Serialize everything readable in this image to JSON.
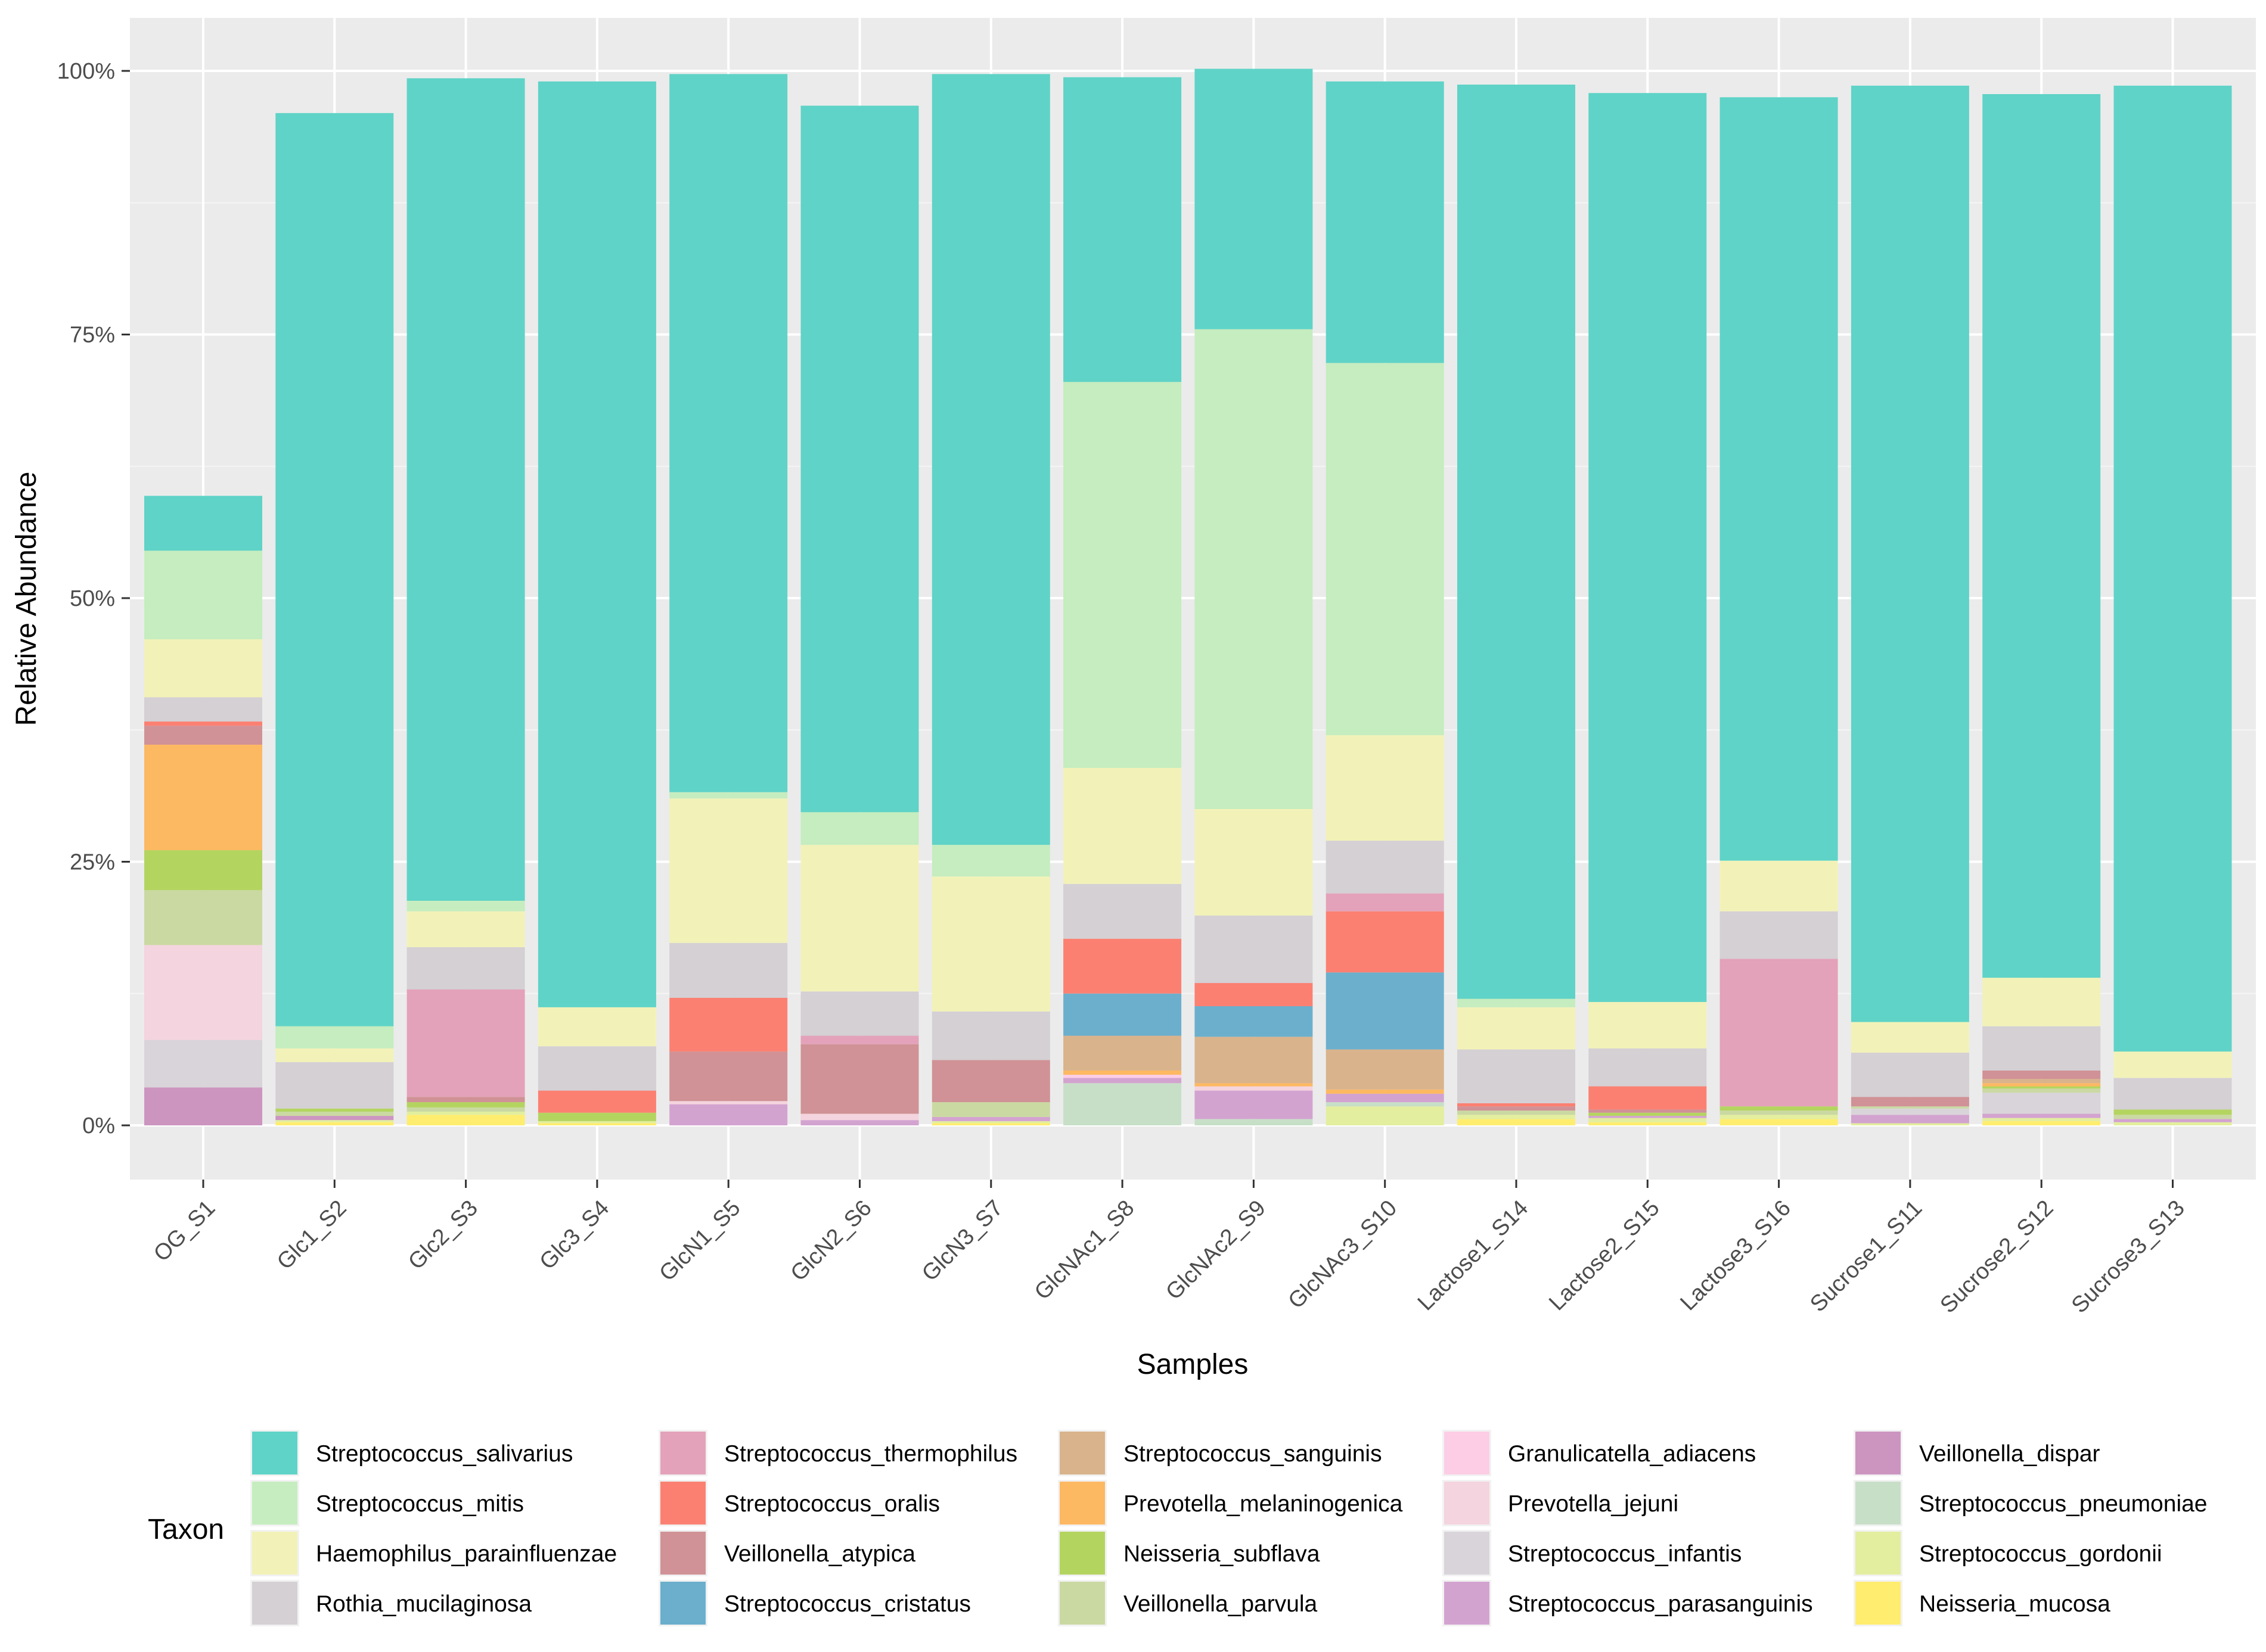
{
  "chart_data": {
    "type": "bar",
    "stacked": true,
    "title": "",
    "xlabel": "Samples",
    "ylabel": "Relative Abundance",
    "ylim": [
      0,
      1
    ],
    "yticks": [
      0,
      0.25,
      0.5,
      0.75,
      1.0
    ],
    "ytick_labels": [
      "0%",
      "25%",
      "50%",
      "75%",
      "100%"
    ],
    "legend_title": "Taxon",
    "legend_position": "bottom",
    "categories": [
      "OG_S1",
      "Glc1_S2",
      "Glc2_S3",
      "Glc3_S4",
      "GlcN1_S5",
      "GlcN2_S6",
      "GlcN3_S7",
      "GlcNAc1_S8",
      "GlcNAc2_S9",
      "GlcNAc3_S10",
      "Lactose1_S14",
      "Lactose2_S15",
      "Lactose3_S16",
      "Sucrose1_S11",
      "Sucrose2_S12",
      "Sucrose3_S13"
    ],
    "series": [
      {
        "name": "Neisseria_mucosa",
        "color": "#FFED6F",
        "values": [
          0.0,
          0.003,
          0.01,
          0.002,
          0.0,
          0.0,
          0.002,
          0.0,
          0.0,
          0.0,
          0.006,
          0.003,
          0.006,
          0.0,
          0.004,
          0.0
        ]
      },
      {
        "name": "Streptococcus_gordonii",
        "color": "#E3EE9E",
        "values": [
          0.0,
          0.002,
          0.003,
          0.002,
          0.0,
          0.0,
          0.002,
          0.0,
          0.0,
          0.018,
          0.004,
          0.004,
          0.004,
          0.002,
          0.003,
          0.003
        ]
      },
      {
        "name": "Streptococcus_pneumoniae",
        "color": "#C7DFC7",
        "values": [
          0.0,
          0.0,
          0.0,
          0.0,
          0.0,
          0.0,
          0.0,
          0.04,
          0.006,
          0.004,
          0.0,
          0.0,
          0.0,
          0.0,
          0.0,
          0.0
        ]
      },
      {
        "name": "Veillonella_dispar",
        "color": "#CC95C0",
        "values": [
          0.036,
          0.004,
          0.0,
          0.0,
          0.0,
          0.0,
          0.0,
          0.0,
          0.0,
          0.0,
          0.0,
          0.0,
          0.0,
          0.0,
          0.0,
          0.0
        ]
      },
      {
        "name": "Streptococcus_parasanguinis",
        "color": "#D3A3D0",
        "values": [
          0.0,
          0.0,
          0.0,
          0.0,
          0.02,
          0.005,
          0.004,
          0.005,
          0.027,
          0.008,
          0.0,
          0.002,
          0.0,
          0.008,
          0.004,
          0.003
        ]
      },
      {
        "name": "Streptococcus_infantis",
        "color": "#D9D4D9",
        "values": [
          0.045,
          0.0,
          0.0,
          0.0,
          0.0,
          0.0,
          0.0,
          0.0,
          0.0,
          0.0,
          0.0,
          0.0,
          0.0,
          0.006,
          0.02,
          0.0
        ]
      },
      {
        "name": "Prevotella_jejuni",
        "color": "#F4D4DE",
        "values": [
          0.09,
          0.0,
          0.0,
          0.0,
          0.003,
          0.006,
          0.0,
          0.0,
          0.004,
          0.0,
          0.0,
          0.0,
          0.0,
          0.0,
          0.0,
          0.0
        ]
      },
      {
        "name": "Granulicatella_adiacens",
        "color": "#FDCDE5",
        "values": [
          0.0,
          0.0,
          0.0,
          0.0,
          0.0,
          0.0,
          0.0,
          0.003,
          0.0,
          0.0,
          0.0,
          0.0,
          0.0,
          0.0,
          0.0,
          0.0
        ]
      },
      {
        "name": "Veillonella_parvula",
        "color": "#CAD9A2",
        "values": [
          0.052,
          0.004,
          0.004,
          0.0,
          0.0,
          0.0,
          0.014,
          0.0,
          0.0,
          0.0,
          0.004,
          0.0,
          0.004,
          0.002,
          0.004,
          0.004
        ]
      },
      {
        "name": "Neisseria_subflava",
        "color": "#B4D460",
        "values": [
          0.038,
          0.003,
          0.005,
          0.008,
          0.0,
          0.0,
          0.0,
          0.0,
          0.0,
          0.0,
          0.0,
          0.003,
          0.004,
          0.0,
          0.002,
          0.005
        ]
      },
      {
        "name": "Prevotella_melaninogenica",
        "color": "#FDB862",
        "values": [
          0.1,
          0.0,
          0.0,
          0.0,
          0.0,
          0.0,
          0.0,
          0.004,
          0.003,
          0.004,
          0.0,
          0.0,
          0.0,
          0.0,
          0.003,
          0.0
        ]
      },
      {
        "name": "Streptococcus_sanguinis",
        "color": "#D9B38C",
        "values": [
          0.0,
          0.0,
          0.0,
          0.0,
          0.0,
          0.0,
          0.0,
          0.033,
          0.044,
          0.038,
          0.0,
          0.0,
          0.0,
          0.0,
          0.004,
          0.0
        ]
      },
      {
        "name": "Streptococcus_cristatus",
        "color": "#6BAFCD",
        "values": [
          0.0,
          0.0,
          0.0,
          0.0,
          0.0,
          0.0,
          0.0,
          0.04,
          0.029,
          0.073,
          0.0,
          0.0,
          0.0,
          0.0,
          0.0,
          0.0
        ]
      },
      {
        "name": "Veillonella_atypica",
        "color": "#D09296",
        "values": [
          0.018,
          0.0,
          0.005,
          0.0,
          0.047,
          0.066,
          0.04,
          0.0,
          0.0,
          0.0,
          0.004,
          0.003,
          0.0,
          0.009,
          0.008,
          0.0
        ]
      },
      {
        "name": "Streptococcus_oralis",
        "color": "#FB8072",
        "values": [
          0.004,
          0.0,
          0.0,
          0.021,
          0.051,
          0.0,
          0.0,
          0.052,
          0.022,
          0.058,
          0.003,
          0.022,
          0.0,
          0.0,
          0.0,
          0.0
        ]
      },
      {
        "name": "Streptococcus_thermophilus",
        "color": "#E3A2B9",
        "values": [
          0.0,
          0.0,
          0.102,
          0.0,
          0.0,
          0.008,
          0.0,
          0.0,
          0.0,
          0.017,
          0.0,
          0.0,
          0.14,
          0.0,
          0.0,
          0.0
        ]
      },
      {
        "name": "Rothia_mucilaginosa",
        "color": "#D4D0D4",
        "values": [
          0.023,
          0.044,
          0.04,
          0.042,
          0.052,
          0.042,
          0.046,
          0.052,
          0.064,
          0.05,
          0.051,
          0.036,
          0.045,
          0.042,
          0.042,
          0.03
        ]
      },
      {
        "name": "Haemophilus_parainfluenzae",
        "color": "#F2F2B8",
        "values": [
          0.055,
          0.013,
          0.034,
          0.037,
          0.137,
          0.139,
          0.128,
          0.11,
          0.101,
          0.1,
          0.04,
          0.044,
          0.048,
          0.029,
          0.046,
          0.025
        ]
      },
      {
        "name": "Streptococcus_mitis",
        "color": "#C5EDBF",
        "values": [
          0.084,
          0.021,
          0.01,
          0.0,
          0.006,
          0.031,
          0.03,
          0.366,
          0.455,
          0.353,
          0.008,
          0.0,
          0.0,
          0.0,
          0.0,
          0.0
        ]
      },
      {
        "name": "Streptococcus_salivarius",
        "color": "#5FD3C7",
        "values": [
          0.052,
          0.866,
          0.78,
          0.878,
          0.681,
          0.67,
          0.731,
          0.289,
          0.247,
          0.267,
          0.867,
          0.862,
          0.724,
          0.888,
          0.838,
          0.916
        ]
      }
    ]
  },
  "legend": {
    "columns": [
      [
        "Streptococcus_salivarius",
        "Streptococcus_mitis",
        "Haemophilus_parainfluenzae",
        "Rothia_mucilaginosa"
      ],
      [
        "Streptococcus_thermophilus",
        "Streptococcus_oralis",
        "Veillonella_atypica",
        "Streptococcus_cristatus"
      ],
      [
        "Streptococcus_sanguinis",
        "Prevotella_melaninogenica",
        "Neisseria_subflava",
        "Veillonella_parvula"
      ],
      [
        "Granulicatella_adiacens",
        "Prevotella_jejuni",
        "Streptococcus_infantis",
        "Streptococcus_parasanguinis"
      ],
      [
        "Veillonella_dispar",
        "Streptococcus_pneumoniae",
        "Streptococcus_gordonii",
        "Neisseria_mucosa"
      ]
    ]
  }
}
